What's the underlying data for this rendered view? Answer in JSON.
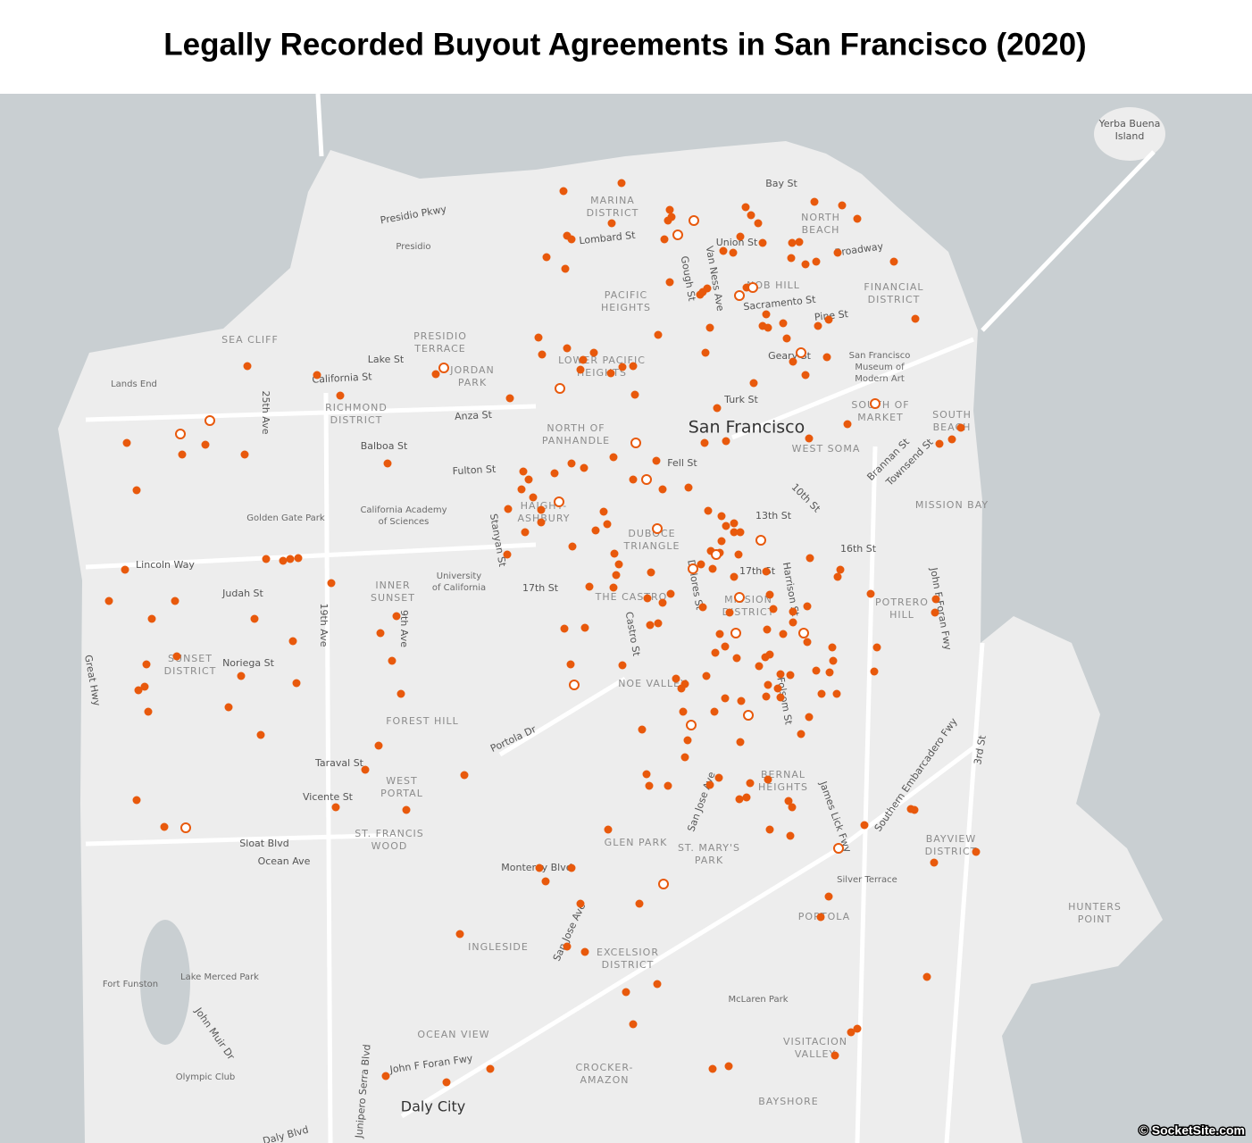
{
  "header": {
    "title": "Legally Recorded Buyout Agreements in San Francisco (2020)"
  },
  "map": {
    "neighborhoods": [
      [
        "MARINA",
        "DISTRICT"
      ],
      [
        "NORTH",
        "BEACH"
      ],
      [
        "NOB HILL"
      ],
      [
        "FINANCIAL",
        "DISTRICT"
      ],
      [
        "PACIFIC",
        "HEIGHTS"
      ],
      [
        "SEA CLIFF"
      ],
      [
        "PRESIDIO",
        "TERRACE"
      ],
      [
        "JORDAN",
        "PARK"
      ],
      [
        "LOWER PACIFIC",
        "HEIGHTS"
      ],
      [
        "RICHMOND",
        "DISTRICT"
      ],
      [
        "SOUTH OF",
        "MARKET"
      ],
      [
        "SOUTH",
        "BEACH"
      ],
      [
        "NORTH OF",
        "PANHANDLE"
      ],
      [
        "WEST SOMA"
      ],
      [
        "HAIGHT-",
        "ASHBURY"
      ],
      [
        "DUBOCE",
        "TRIANGLE"
      ],
      [
        "MISSION BAY"
      ],
      [
        "THE CASTRO"
      ],
      [
        "INNER",
        "SUNSET"
      ],
      [
        "POTRERO",
        "HILL"
      ],
      [
        "MISSION",
        "DISTRICT"
      ],
      [
        "SUNSET",
        "DISTRICT"
      ],
      [
        "NOE VALLEY"
      ],
      [
        "FOREST HILL"
      ],
      [
        "BERNAL",
        "HEIGHTS"
      ],
      [
        "WEST",
        "PORTAL"
      ],
      [
        "ST. FRANCIS",
        "WOOD"
      ],
      [
        "GLEN PARK"
      ],
      [
        "ST. MARY'S",
        "PARK"
      ],
      [
        "BAYVIEW",
        "DISTRICT"
      ],
      [
        "PORTOLA"
      ],
      [
        "HUNTERS",
        "POINT"
      ],
      [
        "INGLESIDE"
      ],
      [
        "EXCELSIOR",
        "DISTRICT"
      ],
      [
        "OCEAN VIEW"
      ],
      [
        "VISITACION",
        "VALLEY"
      ],
      [
        "CROCKER-",
        "AMAZON"
      ],
      [
        "BAYSHORE"
      ]
    ],
    "places": [
      [
        "Yerba Buena",
        "Island"
      ],
      [
        "Presidio"
      ],
      [
        "Lands End"
      ],
      [
        "San Francisco",
        "Museum of",
        "Modern Art"
      ],
      [
        "San Francisco"
      ],
      [
        "California Academy",
        "of Sciences"
      ],
      [
        "Golden Gate Park"
      ],
      [
        "University",
        "of California"
      ],
      [
        "Silver Terrace"
      ],
      [
        "Lake Merced Park"
      ],
      [
        "Fort Funston"
      ],
      [
        "Olympic Club"
      ],
      [
        "McLaren Park"
      ],
      [
        "Daly City"
      ]
    ],
    "streets": [
      "Bay St",
      "Presidio Pkwy",
      "Lombard St",
      "Union St",
      "Broadway",
      "Gough St",
      "Van Ness Ave",
      "Sacramento St",
      "Pine St",
      "Geary St",
      "Lake St",
      "California St",
      "Turk St",
      "Anza St",
      "Balboa St",
      "25th Ave",
      "Fulton St",
      "Fell St",
      "Brannan St",
      "Townsend St",
      "10th St",
      "13th St",
      "Stanyan St",
      "16th St",
      "Lincoln Way",
      "17th St",
      "17th St",
      "Dolores St",
      "Harrison St",
      "Judah St",
      "19th Ave",
      "John F Foran Fwy",
      "9th Ave",
      "Castro St",
      "Noriega St",
      "Great Hwy",
      "Folsom St",
      "Southern Embarcadero Fwy",
      "3rd St",
      "Portola Dr",
      "Taraval St",
      "Vicente St",
      "San Jose Ave",
      "James Lick Fwy",
      "Sloat Blvd",
      "Ocean Ave",
      "Monterey Blvd",
      "San Jose Ave",
      "John Muir Dr",
      "John F Foran Fwy",
      "Junipero Serra Blvd",
      "Daly Blvd"
    ],
    "credit": "© SocketSite.com"
  }
}
